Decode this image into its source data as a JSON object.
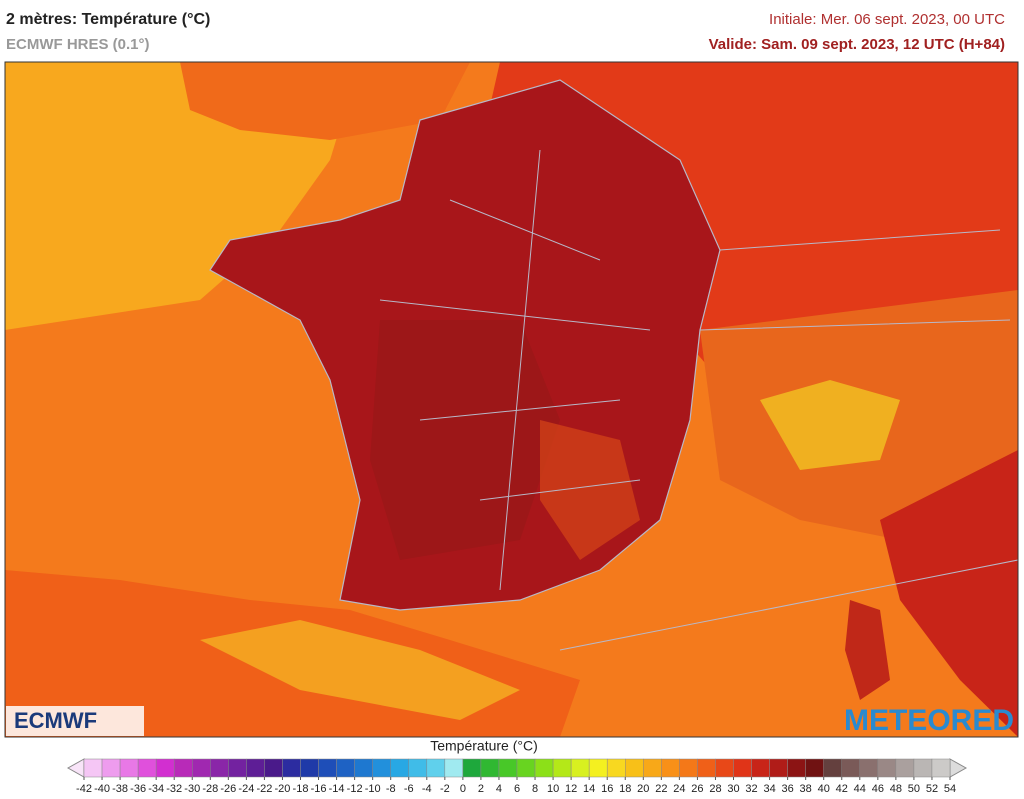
{
  "header": {
    "title": "2 mètres: Température (°C)",
    "subtitle": "ECMWF HRES (0.1°)",
    "initial": "Initiale: Mer. 06 sept. 2023, 00 UTC",
    "valid": "Valide: Sam. 09 sept. 2023, 12 UTC (H+84)"
  },
  "logos": {
    "left": "ECMWF",
    "right": "METEORED"
  },
  "colorbar": {
    "label": "Température (°C)",
    "ticks": [
      -42,
      -40,
      -38,
      -36,
      -34,
      -32,
      -30,
      -28,
      -26,
      -24,
      -22,
      -20,
      -18,
      -16,
      -14,
      -12,
      -10,
      -8,
      -6,
      -4,
      -2,
      0,
      2,
      4,
      6,
      8,
      10,
      12,
      14,
      16,
      18,
      20,
      22,
      24,
      26,
      28,
      30,
      32,
      34,
      36,
      38,
      40,
      42,
      44,
      46,
      48,
      50,
      52,
      54
    ],
    "colors": [
      "#f5c6f5",
      "#ee9cee",
      "#e878e6",
      "#e050dc",
      "#d22fd0",
      "#b82ab8",
      "#a028b0",
      "#8a26a8",
      "#7322a0",
      "#5e1e96",
      "#4a1a8a",
      "#2c2ca0",
      "#1f3aa8",
      "#1e4eb8",
      "#1e62c4",
      "#1e78d0",
      "#2290dc",
      "#28a8e4",
      "#40bce8",
      "#60d0ec",
      "#a0eaf0",
      "#1ea83c",
      "#30b832",
      "#48c828",
      "#68d420",
      "#8ce018",
      "#b4e818",
      "#d8f020",
      "#f4f020",
      "#f8d820",
      "#f8c018",
      "#f8a818",
      "#f89018",
      "#f47818",
      "#f06018",
      "#e84818",
      "#e03418",
      "#c82418",
      "#b01c18",
      "#8c1414",
      "#701212",
      "#64403e",
      "#7a5a58",
      "#8a706e",
      "#9a8886",
      "#aaa09e",
      "#bab6b4",
      "#cccac8"
    ]
  }
}
